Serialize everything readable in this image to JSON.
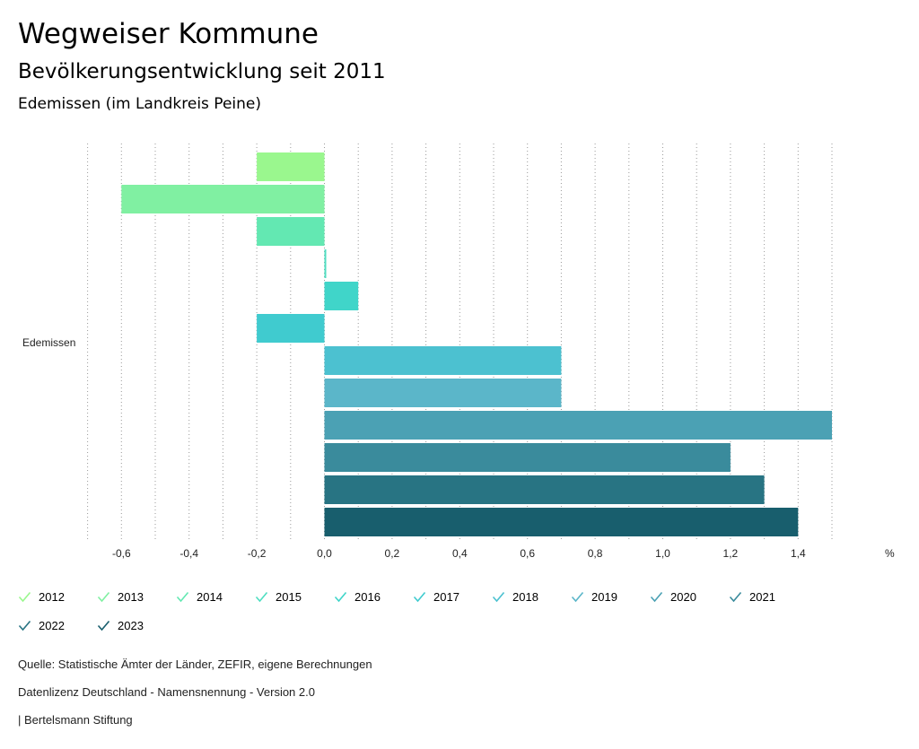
{
  "header": {
    "title": "Wegweiser Kommune",
    "subtitle": "Bevölkerungsentwicklung seit 2011",
    "place": "Edemissen (im Landkreis Peine)"
  },
  "chart_data": {
    "type": "bar",
    "orientation": "horizontal",
    "category": "Edemissen",
    "unit_label": "%",
    "xlim": [
      -0.7,
      1.5
    ],
    "x_ticks": [
      -0.6,
      -0.4,
      -0.2,
      0.0,
      0.2,
      0.4,
      0.6,
      0.8,
      1.0,
      1.2,
      1.4
    ],
    "tick_labels": [
      "-0,6",
      "-0,4",
      "-0,2",
      "0,0",
      "0,2",
      "0,4",
      "0,6",
      "0,8",
      "1,0",
      "1,2",
      "1,4"
    ],
    "grid": "vertical dotted",
    "series": [
      {
        "name": "2012",
        "value": -0.2,
        "color": "#9af78e"
      },
      {
        "name": "2013",
        "value": -0.6,
        "color": "#80f0a2"
      },
      {
        "name": "2014",
        "value": -0.2,
        "color": "#63e8b2"
      },
      {
        "name": "2015",
        "value": 0.0,
        "color": "#4fdec1"
      },
      {
        "name": "2016",
        "value": 0.1,
        "color": "#40d5c9"
      },
      {
        "name": "2017",
        "value": -0.2,
        "color": "#40cbcf"
      },
      {
        "name": "2018",
        "value": 0.7,
        "color": "#4cc1d0"
      },
      {
        "name": "2019",
        "value": 0.7,
        "color": "#5bb6c9"
      },
      {
        "name": "2020",
        "value": 1.5,
        "color": "#4ba1b4"
      },
      {
        "name": "2021",
        "value": 1.2,
        "color": "#3a8b9c"
      },
      {
        "name": "2022",
        "value": 1.3,
        "color": "#287483"
      },
      {
        "name": "2023",
        "value": 1.4,
        "color": "#185e6d"
      }
    ]
  },
  "footer": {
    "source": "Quelle: Statistische Ämter der Länder, ZEFIR, eigene Berechnungen",
    "license": "Datenlizenz Deutschland - Namensnennung - Version 2.0",
    "credit": "| Bertelsmann Stiftung"
  }
}
